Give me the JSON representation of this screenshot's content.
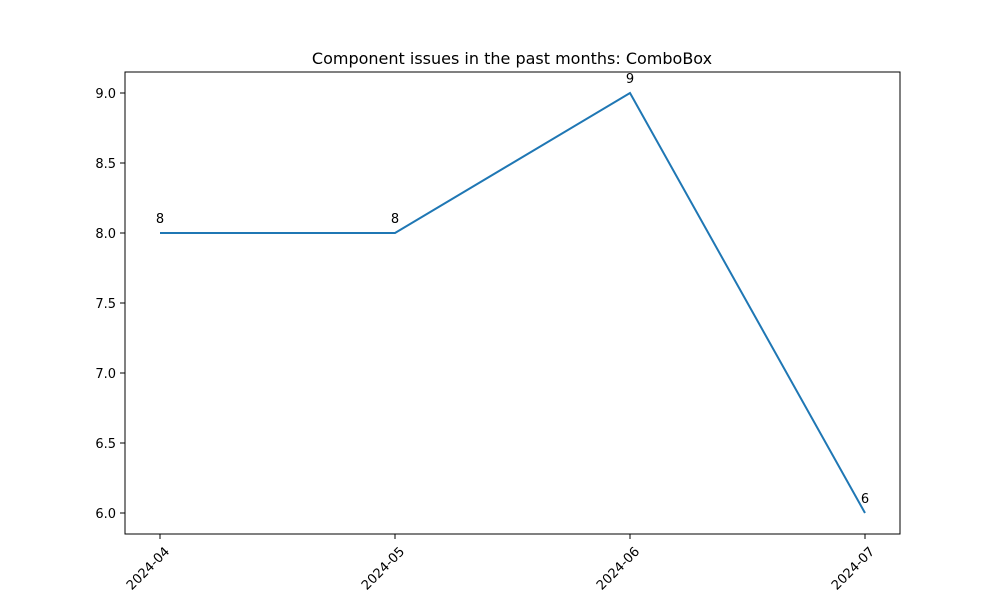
{
  "chart_data": {
    "type": "line",
    "title": "Component issues in the past months: ComboBox",
    "xlabel": "",
    "ylabel": "",
    "categories": [
      "2024-04",
      "2024-05",
      "2024-06",
      "2024-07"
    ],
    "series": [
      {
        "values": [
          8,
          8,
          9,
          6
        ],
        "color": "#1f77b4"
      }
    ],
    "data_labels": [
      "8",
      "8",
      "9",
      "6"
    ],
    "ylim": [
      5.85,
      9.15
    ],
    "yticks": [
      6.0,
      6.5,
      7.0,
      7.5,
      8.0,
      8.5,
      9.0
    ],
    "ytick_labels": [
      "6.0",
      "6.5",
      "7.0",
      "7.5",
      "8.0",
      "8.5",
      "9.0"
    ],
    "grid": false,
    "legend": "none",
    "x_tick_rotation": 45
  }
}
